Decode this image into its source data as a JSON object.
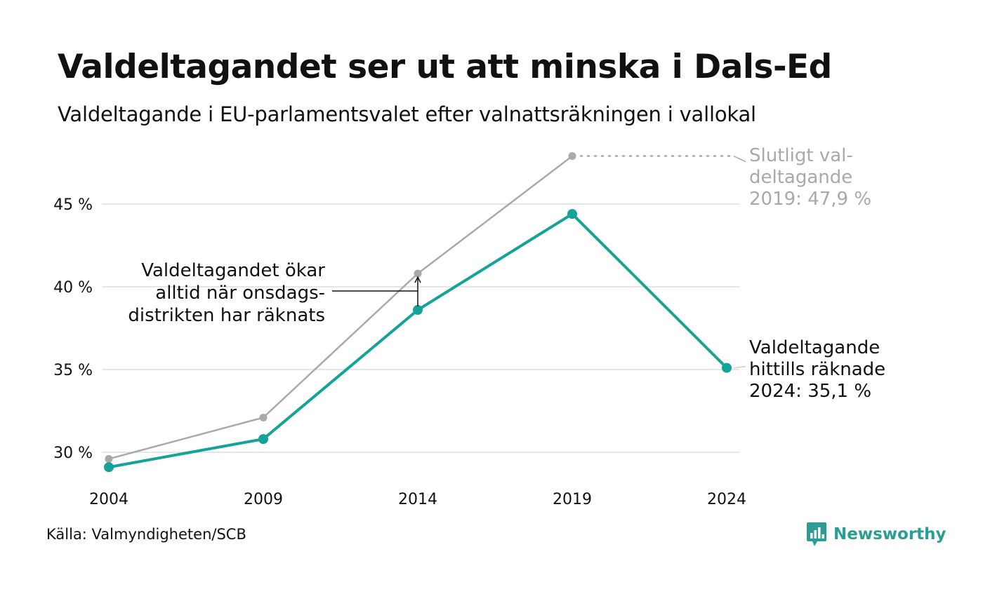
{
  "header": {
    "title": "Valdeltagandet ser ut att minska i Dals-Ed",
    "subtitle": "Valdeltagande i EU-parlamentsvalet efter valnattsräkningen i vallokal"
  },
  "footer": {
    "source": "Källa: Valmyndigheten/SCB",
    "brand": "Newsworthy"
  },
  "colors": {
    "counted": "#13a398",
    "final": "#a9a9a9",
    "grid": "#e6e6e6",
    "brand": "#2a9d94"
  },
  "chart_data": {
    "type": "line",
    "categories": [
      "2004",
      "2009",
      "2014",
      "2019",
      "2024"
    ],
    "series": [
      {
        "key": "final",
        "values": [
          29.6,
          32.1,
          40.8,
          47.9,
          null
        ]
      },
      {
        "key": "counted",
        "values": [
          29.1,
          30.8,
          38.6,
          44.4,
          35.1
        ]
      }
    ],
    "ylim": [
      28,
      48
    ],
    "yticks": [
      30,
      35,
      40,
      45
    ],
    "ytick_labels": [
      "30 %",
      "35 %",
      "40 %",
      "45 %"
    ],
    "grid": true,
    "annotations": {
      "final_label": [
        "Slutligt val-",
        "deltagande",
        "2019: 47,9 %"
      ],
      "counted_label": [
        "Valdeltagande",
        "hittills räknade",
        "2024: 35,1 %"
      ],
      "note": [
        "Valdeltagandet ökar",
        "alltid när onsdags-",
        "distrikten har räknats"
      ]
    }
  }
}
